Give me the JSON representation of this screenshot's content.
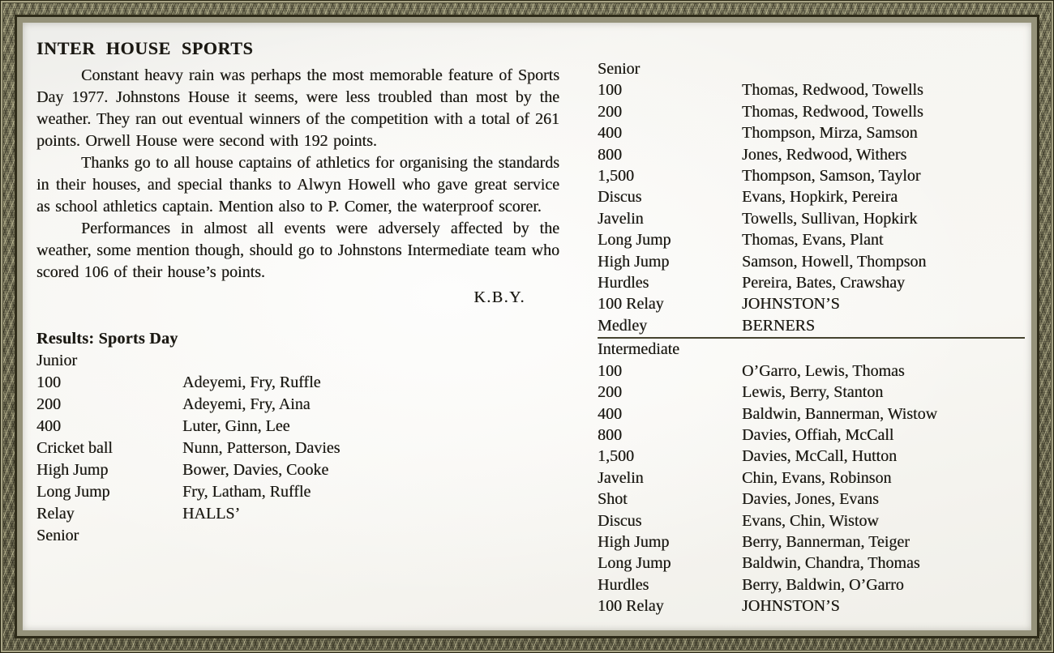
{
  "article": {
    "title": "INTER HOUSE SPORTS",
    "paragraphs": [
      {
        "text": "Constant heavy rain was perhaps the most memorable feature of Sports Day 1977. Johnstons House it seems, were less troubled than most by the weather. They ran out eventual winners of the competition with a total of 261 points. Orwell House were second with 192 points."
      },
      {
        "text": "Thanks go to all house captains of athletics for organising the standards in their houses, and special thanks to Alwyn Howell who gave great service as school athletics captain. Mention also to P. Comer, the waterproof scorer."
      },
      {
        "text": "Performances in almost all events were adversely affected by the weather, some mention though, should go to Johnstons Intermediate team who scored 106 of their house’s points."
      }
    ],
    "signature": "K.B.Y."
  },
  "results": {
    "heading": "Results: Sports Day",
    "junior": {
      "label": "Junior",
      "rows": [
        {
          "event": "100",
          "winners": "Adeyemi, Fry, Ruffle"
        },
        {
          "event": "200",
          "winners": "Adeyemi, Fry, Aina"
        },
        {
          "event": "400",
          "winners": "Luter, Ginn, Lee"
        },
        {
          "event": "Cricket ball",
          "winners": "Nunn, Patterson, Davies"
        },
        {
          "event": "High Jump",
          "winners": "Bower, Davies, Cooke"
        },
        {
          "event": "Long Jump",
          "winners": "Fry, Latham, Ruffle"
        },
        {
          "event": "Relay",
          "winners": "HALLS’"
        }
      ],
      "continuation_label": "Senior"
    },
    "senior": {
      "label": "Senior",
      "rows": [
        {
          "event": "100",
          "winners": "Thomas, Redwood, Towells"
        },
        {
          "event": "200",
          "winners": "Thomas, Redwood, Towells"
        },
        {
          "event": "400",
          "winners": "Thompson, Mirza, Samson"
        },
        {
          "event": "800",
          "winners": "Jones, Redwood, Withers"
        },
        {
          "event": "1,500",
          "winners": "Thompson, Samson, Taylor"
        },
        {
          "event": "Discus",
          "winners": "Evans, Hopkirk, Pereira"
        },
        {
          "event": "Javelin",
          "winners": "Towells, Sullivan, Hopkirk"
        },
        {
          "event": "Long Jump",
          "winners": "Thomas, Evans, Plant"
        },
        {
          "event": "High Jump",
          "winners": "Samson, Howell, Thompson"
        },
        {
          "event": "Hurdles",
          "winners": "Pereira, Bates, Crawshay"
        },
        {
          "event": "100 Relay",
          "winners": "JOHNSTON’S"
        },
        {
          "event": "Medley",
          "winners": "BERNERS"
        }
      ]
    },
    "intermediate": {
      "label": "Intermediate",
      "rows": [
        {
          "event": "100",
          "winners": "O’Garro, Lewis, Thomas"
        },
        {
          "event": "200",
          "winners": "Lewis, Berry, Stanton"
        },
        {
          "event": "400",
          "winners": "Baldwin, Bannerman, Wistow"
        },
        {
          "event": "800",
          "winners": "Davies, Offiah, McCall"
        },
        {
          "event": "1,500",
          "winners": "Davies, McCall, Hutton"
        },
        {
          "event": "Javelin",
          "winners": "Chin, Evans, Robinson"
        },
        {
          "event": "Shot",
          "winners": "Davies, Jones, Evans"
        },
        {
          "event": "Discus",
          "winners": "Evans, Chin, Wistow"
        },
        {
          "event": "High Jump",
          "winners": "Berry, Bannerman, Teiger"
        },
        {
          "event": "Long Jump",
          "winners": "Baldwin, Chandra, Thomas"
        },
        {
          "event": "Hurdles",
          "winners": "Berry, Baldwin, O’Garro"
        },
        {
          "event": "100 Relay",
          "winners": "JOHNSTON’S"
        }
      ]
    }
  },
  "colors": {
    "page_bg": "#f6f5f1",
    "ink": "#1b1913",
    "frame_olive": "#6e6b52",
    "frame_dark": "#2e2b19",
    "frame_light": "#a8a486",
    "divider": "#45432f"
  }
}
